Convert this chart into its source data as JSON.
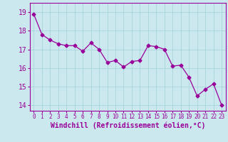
{
  "x": [
    0,
    1,
    2,
    3,
    4,
    5,
    6,
    7,
    8,
    9,
    10,
    11,
    12,
    13,
    14,
    15,
    16,
    17,
    18,
    19,
    20,
    21,
    22,
    23
  ],
  "y": [
    18.9,
    17.8,
    17.5,
    17.3,
    17.2,
    17.2,
    16.9,
    17.35,
    17.0,
    16.3,
    16.4,
    16.05,
    16.35,
    16.4,
    17.2,
    17.15,
    17.0,
    16.1,
    16.15,
    15.5,
    14.5,
    14.85,
    15.15,
    14.0
  ],
  "line_color": "#990099",
  "marker": "D",
  "markersize": 2.5,
  "linewidth": 0.9,
  "bg_color": "#cce8ef",
  "grid_color": "#aad4dc",
  "xlabel": "Windchill (Refroidissement éolien,°C)",
  "xlabel_color": "#990099",
  "xlabel_fontsize": 7,
  "ytick_vals": [
    14,
    15,
    16,
    17,
    18,
    19
  ],
  "ytick_labels": [
    "14",
    "15",
    "16",
    "17",
    "18",
    "19"
  ],
  "ylim": [
    13.7,
    19.5
  ],
  "xlim": [
    -0.5,
    23.5
  ],
  "tick_color": "#990099",
  "ytick_fontsize": 7,
  "xtick_fontsize": 5.5,
  "axis_color": "#990099"
}
